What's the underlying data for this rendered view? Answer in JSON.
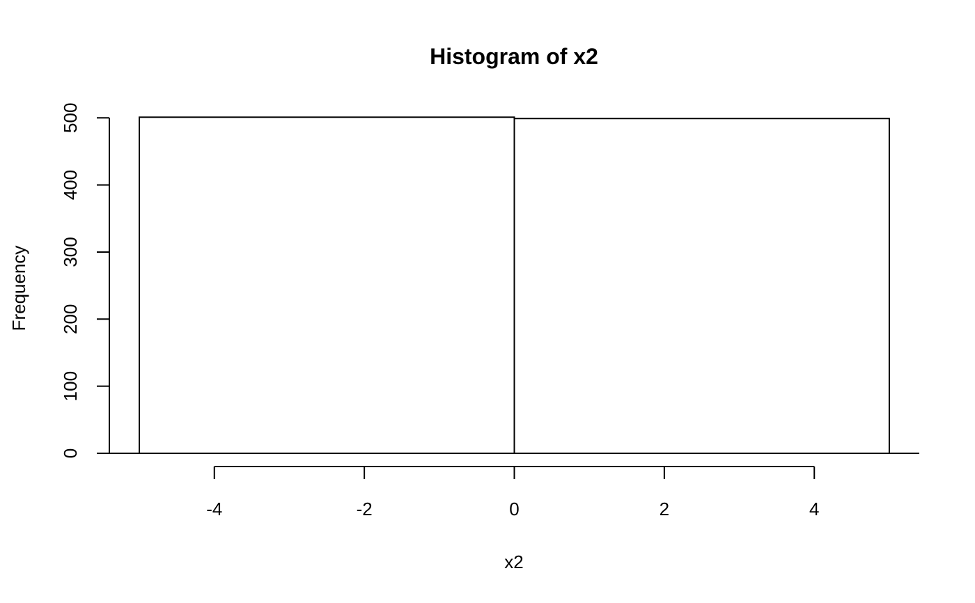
{
  "chart_data": {
    "type": "bar",
    "title": "Histogram of x2",
    "xlabel": "x2",
    "ylabel": "Frequency",
    "bins": [
      {
        "start": -5,
        "end": 0,
        "count": 501
      },
      {
        "start": 0,
        "end": 5,
        "count": 499
      }
    ],
    "xticks": [
      -4,
      -2,
      0,
      2,
      4
    ],
    "yticks": [
      0,
      100,
      200,
      300,
      400,
      500
    ],
    "xlim": [
      -5.4,
      5.4
    ],
    "ylim": [
      0,
      520
    ],
    "bar_fill": "#ffffff",
    "bar_stroke": "#000000"
  }
}
